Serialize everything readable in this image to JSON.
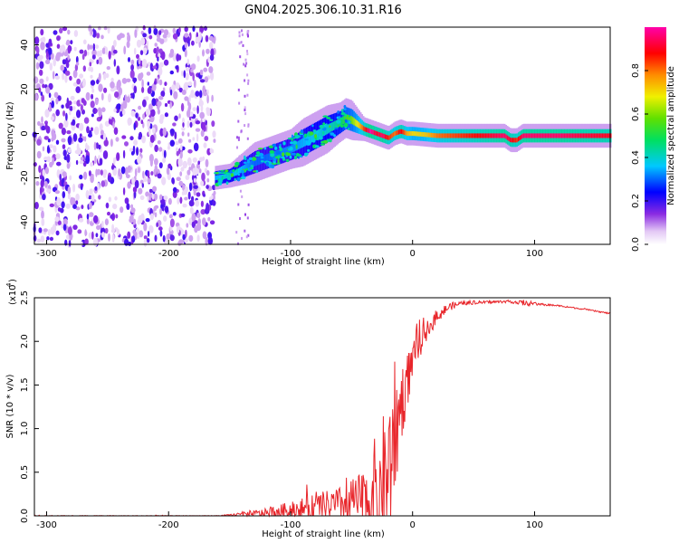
{
  "title": "GN04.2025.306.10.31.R16",
  "chart_data": [
    {
      "type": "heatmap",
      "name": "spectrogram",
      "xlabel": "Height of straight line (km)",
      "ylabel": "Frequency (Hz)",
      "xlim": [
        -310,
        162
      ],
      "ylim": [
        -50,
        48
      ],
      "xticks": [
        -300,
        -200,
        -100,
        0,
        100
      ],
      "xtick_labels": [
        "-300",
        "-200",
        "-100",
        "0",
        "100"
      ],
      "yticks": [
        -40,
        -20,
        0,
        20,
        40
      ],
      "ytick_labels": [
        "-40",
        "-20",
        "0",
        "20",
        "40"
      ],
      "noise_region_x": [
        -310,
        -162
      ],
      "ridge": {
        "x": [
          -162,
          -150,
          -140,
          -130,
          -120,
          -110,
          -100,
          -90,
          -80,
          -70,
          -60,
          -55,
          -50,
          -45,
          -40,
          -35,
          -30,
          -25,
          -20,
          -15,
          -10,
          -5,
          0,
          10,
          20,
          40,
          60,
          75,
          80,
          85,
          90,
          100,
          120,
          140,
          162
        ],
        "y": [
          -20,
          -19,
          -16,
          -13,
          -11,
          -9,
          -7,
          -4,
          -1,
          2,
          5,
          7,
          6,
          4,
          2,
          1,
          0,
          -1,
          -2,
          0,
          1,
          0,
          0,
          -0.5,
          -1,
          -1,
          -1,
          -1,
          -3,
          -3,
          -1,
          -1,
          -1,
          -1,
          -1
        ],
        "amp": [
          0.35,
          0.4,
          0.35,
          0.3,
          0.3,
          0.32,
          0.32,
          0.35,
          0.38,
          0.4,
          0.45,
          0.55,
          0.6,
          0.7,
          0.85,
          1.0,
          0.9,
          0.95,
          0.85,
          0.8,
          0.9,
          0.75,
          0.7,
          0.72,
          0.8,
          0.85,
          0.9,
          0.95,
          0.9,
          0.85,
          0.95,
          0.95,
          0.95,
          0.92,
          0.9
        ],
        "width": [
          3,
          3,
          4,
          5,
          5,
          5,
          5,
          6,
          6,
          6,
          5,
          5,
          5,
          4,
          3,
          3,
          3,
          3,
          3,
          3,
          3,
          3,
          3,
          3,
          3,
          3,
          3,
          3,
          3,
          3,
          3,
          3,
          3,
          3,
          3
        ]
      },
      "colorbar": {
        "label": "Normalized spectral amplitude",
        "range": [
          0,
          1
        ],
        "ticks": [
          0.0,
          0.2,
          0.4,
          0.6,
          0.8
        ],
        "tick_labels": [
          "0.0",
          "0.2",
          "0.4",
          "0.6",
          "0.8"
        ]
      }
    },
    {
      "type": "line",
      "name": "snr",
      "xlabel": "Height of straight line (km)",
      "ylabel": "SNR (10 * v/v)",
      "multiplier_label": "(x10",
      "multiplier_exp": "4",
      "xlim": [
        -310,
        162
      ],
      "ylim": [
        0,
        2.5
      ],
      "xticks": [
        -300,
        -200,
        -100,
        0,
        100
      ],
      "xtick_labels": [
        "-300",
        "-200",
        "-100",
        "0",
        "100"
      ],
      "yticks": [
        0,
        0.5,
        1.0,
        1.5,
        2.0,
        2.5
      ],
      "ytick_labels": [
        "0.0",
        "0.5",
        "1.0",
        "1.5",
        "2.0",
        "2.5"
      ],
      "color": "#e8252a",
      "envelope": {
        "x": [
          -310,
          -160,
          -150,
          -140,
          -120,
          -100,
          -80,
          -60,
          -50,
          -40,
          -35,
          -30,
          -25,
          -20,
          -15,
          -10,
          0,
          10,
          20,
          30,
          40,
          60,
          80,
          90,
          100,
          120,
          140,
          162
        ],
        "base": [
          0.0,
          0.0,
          0.01,
          0.02,
          0.04,
          0.08,
          0.12,
          0.15,
          0.18,
          0.2,
          0.25,
          0.3,
          0.4,
          0.6,
          0.9,
          1.3,
          1.8,
          2.1,
          2.3,
          2.4,
          2.44,
          2.45,
          2.46,
          2.44,
          2.43,
          2.41,
          2.37,
          2.32
        ],
        "spread": [
          0.005,
          0.005,
          0.01,
          0.03,
          0.06,
          0.12,
          0.18,
          0.25,
          0.3,
          0.45,
          0.6,
          0.9,
          1.0,
          1.1,
          0.9,
          0.6,
          0.25,
          0.15,
          0.1,
          0.06,
          0.03,
          0.02,
          0.02,
          0.04,
          0.02,
          0.01,
          0.01,
          0.01
        ]
      }
    }
  ]
}
